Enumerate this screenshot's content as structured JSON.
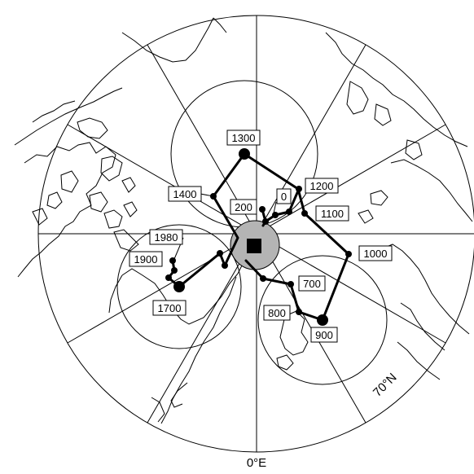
{
  "map": {
    "bottom_label": "0°E",
    "lat_circle_label": "70°N",
    "colors": {
      "line": "#000000",
      "pole_disk": "#b4b4b4",
      "background": "#ffffff"
    },
    "icons": {
      "pole_marker": "square",
      "path_vertex": "filled-circle"
    }
  },
  "path": {
    "labels": [
      "0",
      "200",
      "700",
      "800",
      "900",
      "1000",
      "1100",
      "1200",
      "1300",
      "1400",
      "1700",
      "1900",
      "1980"
    ]
  }
}
